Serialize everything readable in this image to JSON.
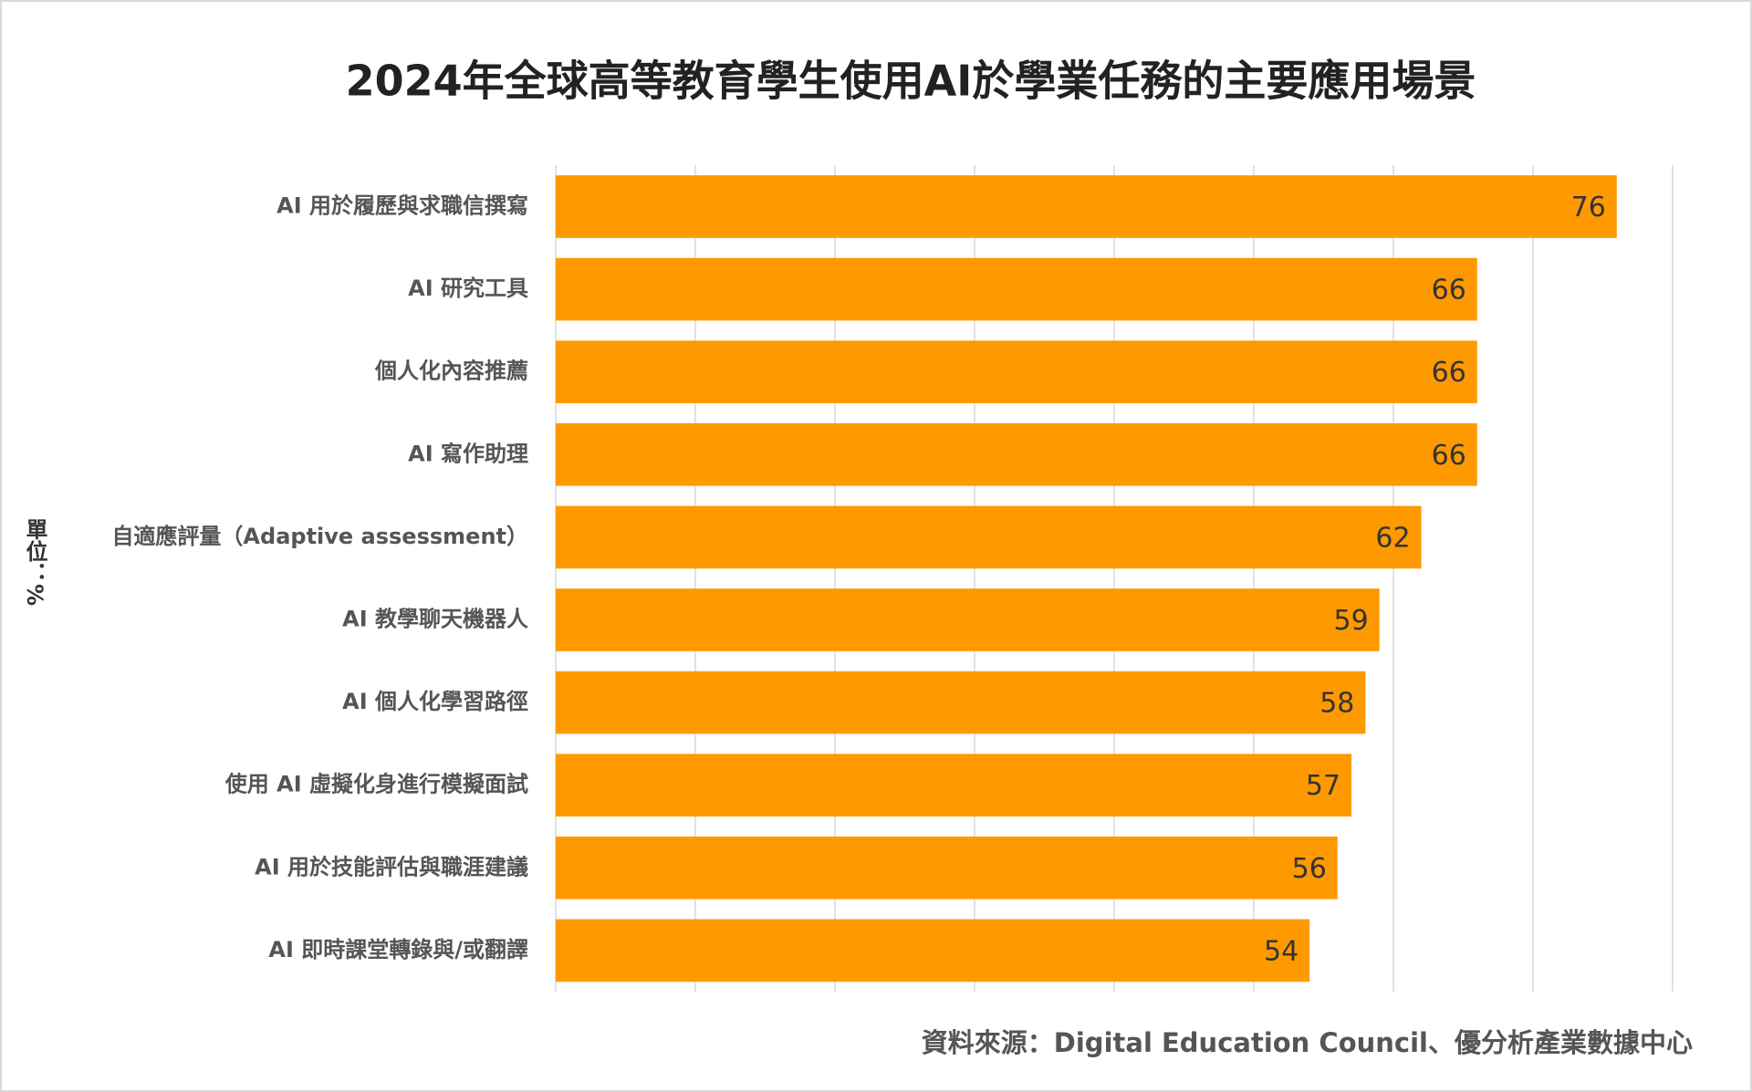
{
  "chart_data": {
    "type": "hbar",
    "title": "2024年全球高等教育學生使用AI於學業任務的主要應用場景",
    "y_label": "單位：%",
    "source": "資料來源：Digital Education Council、優分析產業數據中心",
    "categories": [
      "AI 用於履歷與求職信撰寫",
      "AI 研究工具",
      "個人化內容推薦",
      "AI 寫作助理",
      "自適應評量（Adaptive assessment）",
      "AI 教學聊天機器人",
      "AI 個人化學習路徑",
      "使用 AI 虛擬化身進行模擬面試",
      "AI 用於技能評估與職涯建議",
      "AI 即時課堂轉錄與/或翻譯"
    ],
    "values": [
      76,
      66,
      66,
      66,
      62,
      59,
      58,
      57,
      56,
      54
    ],
    "color": "#ff9900",
    "xlim": [
      0,
      80
    ],
    "xticks": [
      0,
      10,
      20,
      30,
      40,
      50,
      60,
      70,
      80
    ],
    "grid": true
  }
}
